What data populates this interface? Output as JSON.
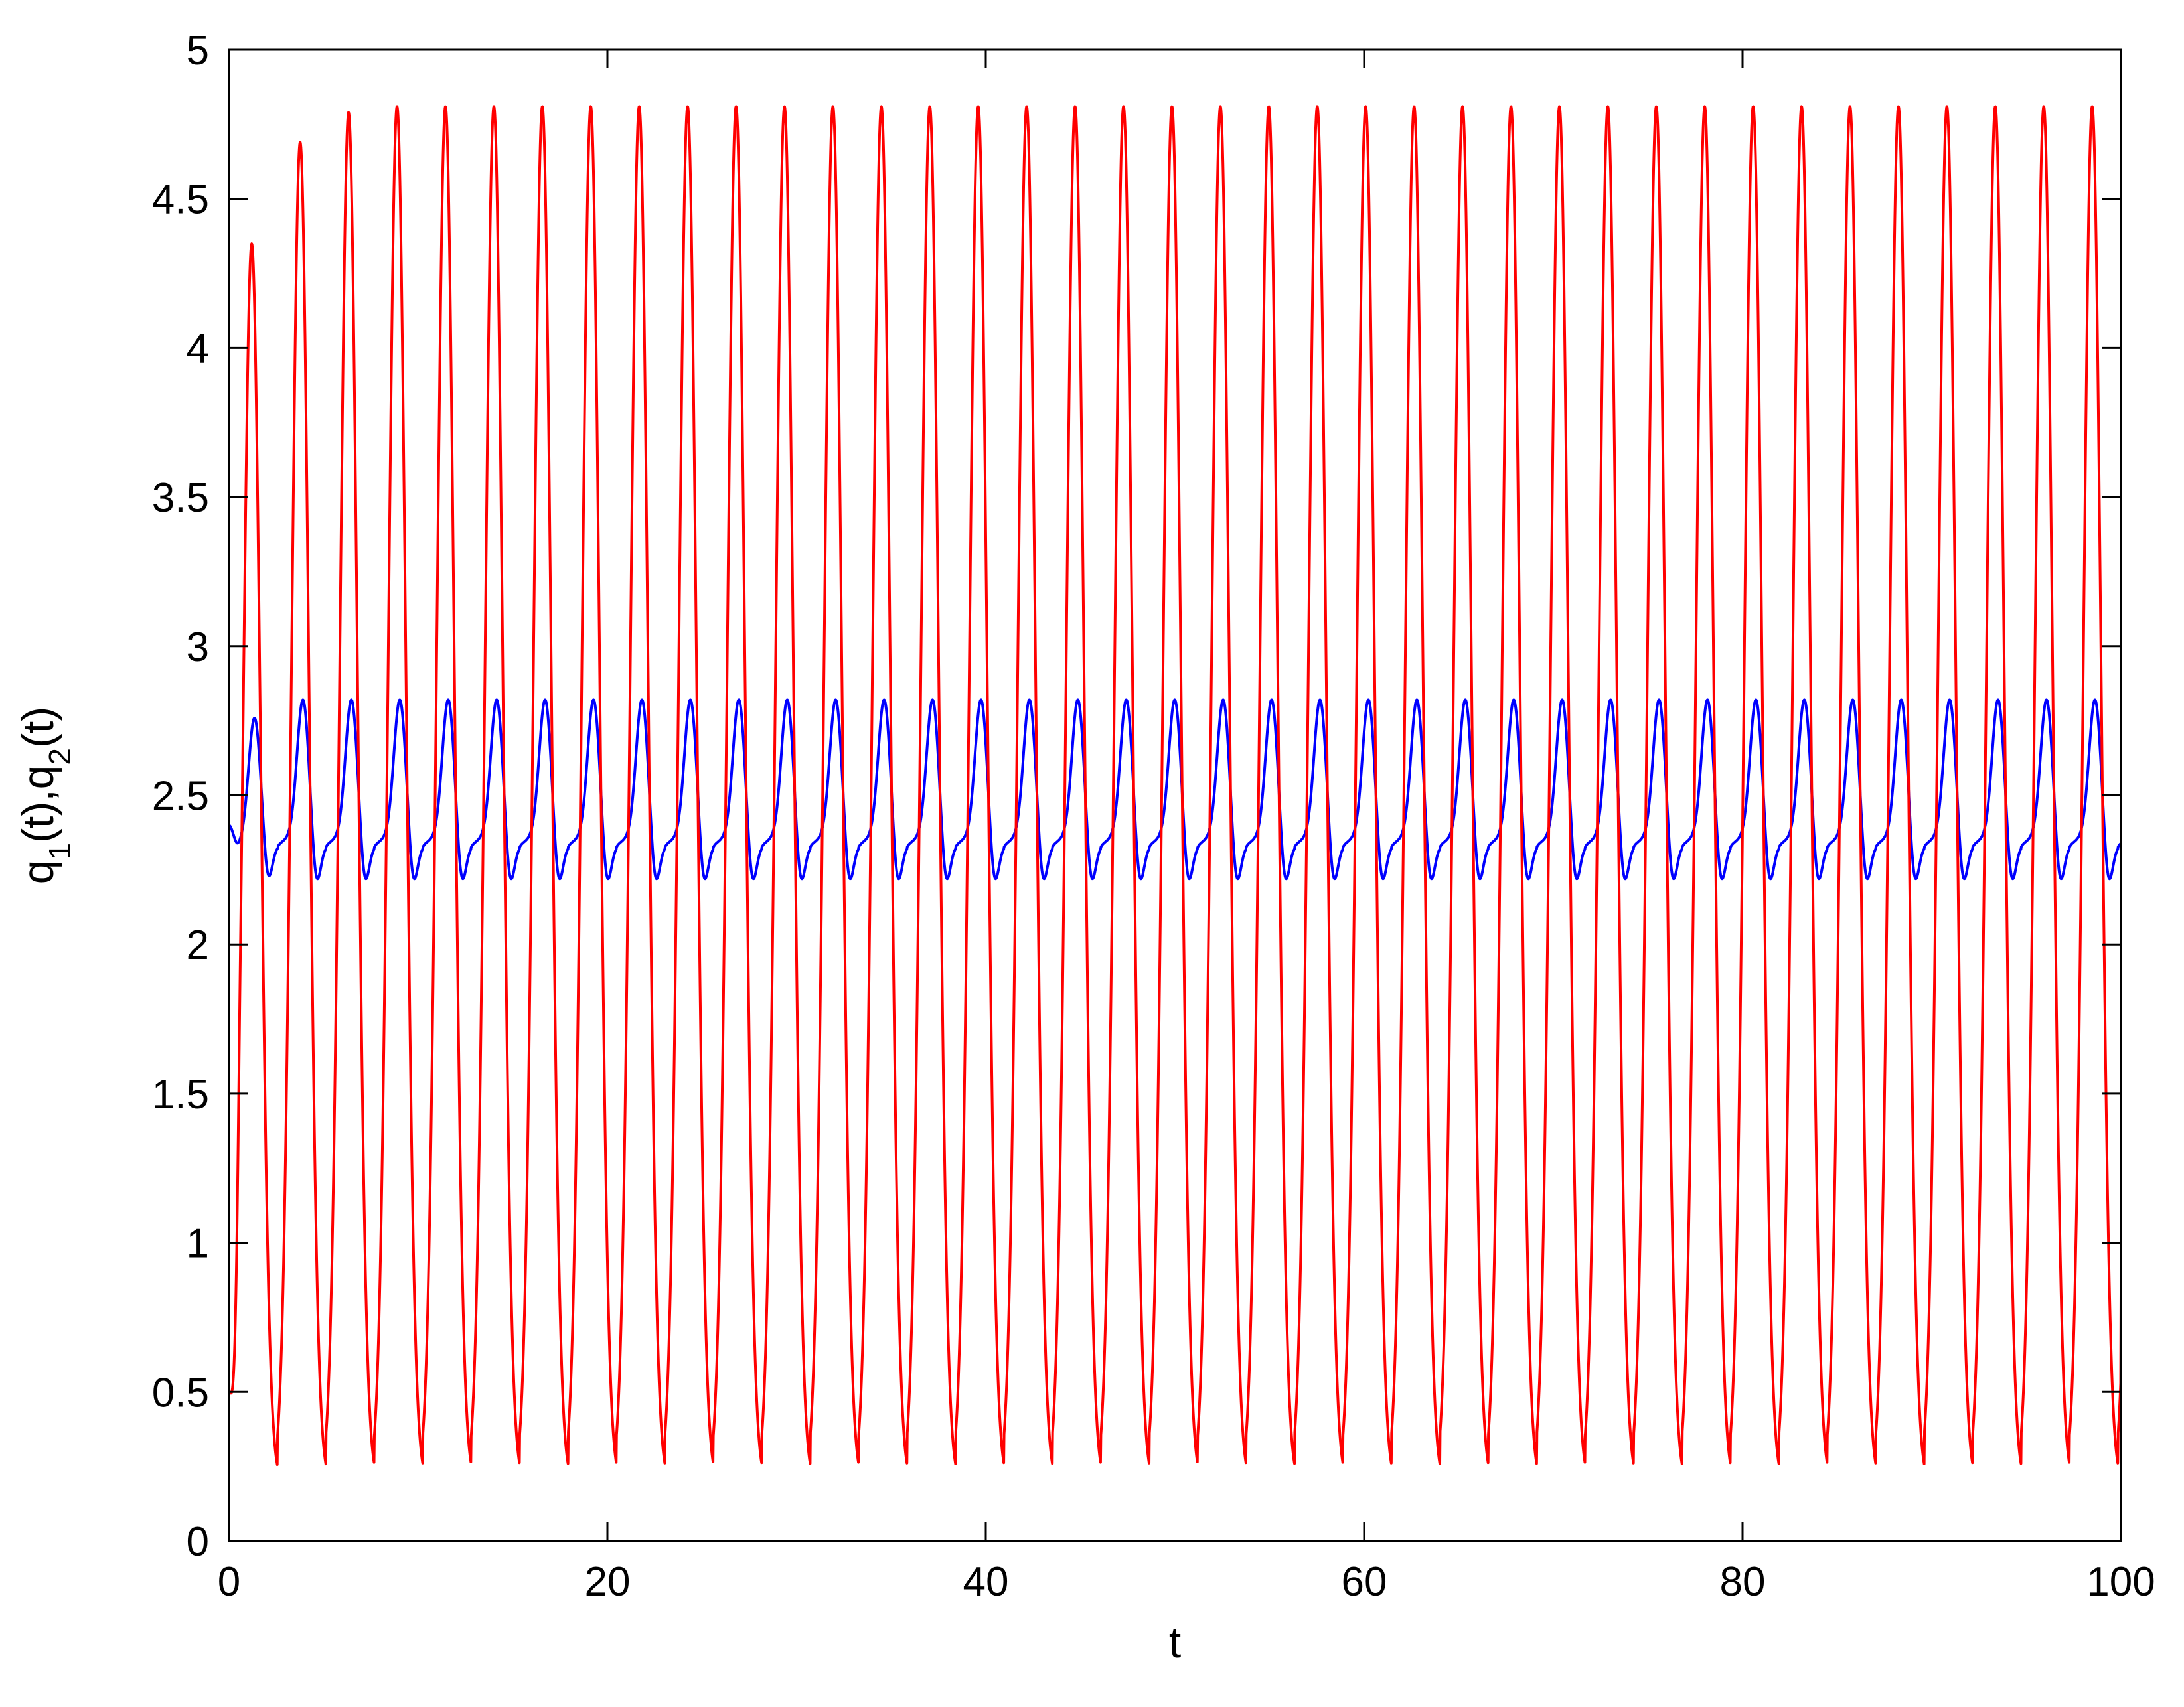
{
  "chart_data": {
    "type": "line",
    "title": "",
    "xlabel": "t",
    "ylabel": {
      "parts": [
        {
          "text": "q",
          "sub": false
        },
        {
          "text": "1",
          "sub": true
        },
        {
          "text": "(t),q",
          "sub": false
        },
        {
          "text": "2",
          "sub": true
        },
        {
          "text": "(t)",
          "sub": false
        }
      ]
    },
    "xlim": [
      0,
      100
    ],
    "ylim": [
      0,
      5
    ],
    "x_ticks": [
      "0",
      "20",
      "40",
      "60",
      "80",
      "100"
    ],
    "y_ticks": [
      "0",
      "0.5",
      "1",
      "1.5",
      "2",
      "2.5",
      "3",
      "3.5",
      "4",
      "4.5",
      "5"
    ],
    "grid": false,
    "legend": "none",
    "series": [
      {
        "color": "#ff0000",
        "period": 2.56,
        "steady_max": 4.81,
        "steady_min": 0.2,
        "initial_value": 0.5,
        "transient_peaks": [
          {
            "t": 1.2,
            "value": 4.35
          },
          {
            "t": 3.7,
            "value": 4.69
          },
          {
            "t": 6.2,
            "value": 4.79
          }
        ],
        "transient_troughs": [
          {
            "t": 2.3,
            "value": 0.27
          },
          {
            "t": 4.8,
            "value": 0.21
          }
        ],
        "end_value": 0.83
      },
      {
        "color": "#0000ff",
        "period": 2.56,
        "steady_max": 2.82,
        "steady_min": 2.17,
        "shoulder_value": 2.33,
        "initial_value": 2.4,
        "transient_peaks": [
          {
            "t": 1.3,
            "value": 2.76
          },
          {
            "t": 3.8,
            "value": 2.8
          }
        ],
        "transient_troughs": [
          {
            "t": 0.3,
            "value": 2.31
          },
          {
            "t": 2.1,
            "value": 2.2
          },
          {
            "t": 4.6,
            "value": 2.18
          }
        ],
        "end_value": 2.33
      }
    ]
  }
}
